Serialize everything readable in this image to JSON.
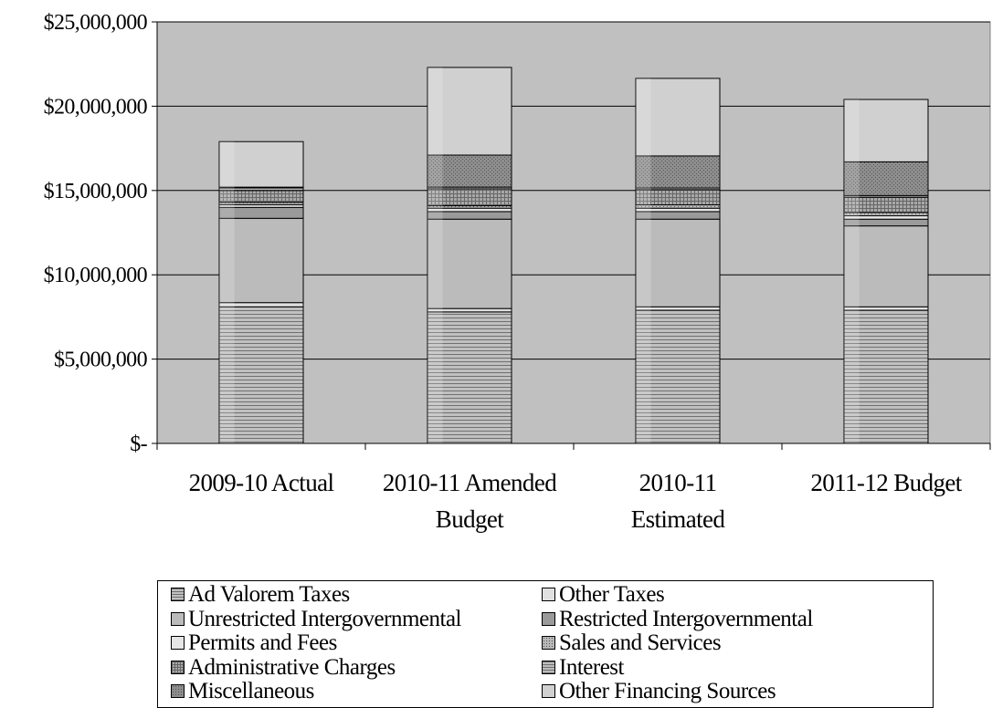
{
  "chart_data": {
    "type": "bar",
    "stacked": true,
    "categories": [
      "2009-10 Actual",
      "2010-11 Amended Budget",
      "2010-11 Estimated",
      "2011-12 Budget"
    ],
    "category_label_lines": [
      [
        "2009-10 Actual"
      ],
      [
        "2010-11 Amended",
        "Budget"
      ],
      [
        "2010-11",
        "Estimated"
      ],
      [
        "2011-12 Budget"
      ]
    ],
    "y_ticks": [
      "$-",
      "$5,000,000",
      "$10,000,000",
      "$15,000,000",
      "$20,000,000",
      "$25,000,000"
    ],
    "ylim": [
      0,
      25000000
    ],
    "grid": true,
    "legend_position": "bottom",
    "series": [
      {
        "name": "Ad Valorem Taxes",
        "values": [
          8100000,
          7800000,
          7900000,
          7900000
        ],
        "fill": "#c0c0c0",
        "pattern": "hlines"
      },
      {
        "name": "Other Taxes",
        "values": [
          250000,
          200000,
          200000,
          200000
        ],
        "fill": "#e0e0e0",
        "pattern": "none"
      },
      {
        "name": "Unrestricted Intergovernmental",
        "values": [
          5000000,
          5300000,
          5200000,
          4800000
        ],
        "fill": "#bbbbbb",
        "pattern": "none"
      },
      {
        "name": "Restricted Intergovernmental",
        "values": [
          650000,
          450000,
          450000,
          400000
        ],
        "fill": "#9a9a9a",
        "pattern": "none"
      },
      {
        "name": "Permits and Fees",
        "values": [
          150000,
          200000,
          200000,
          200000
        ],
        "fill": "#e6e6e6",
        "pattern": "none"
      },
      {
        "name": "Sales and Services",
        "values": [
          150000,
          150000,
          200000,
          200000
        ],
        "fill": "#b8b8b8",
        "pattern": "dots"
      },
      {
        "name": "Administrative Charges",
        "values": [
          700000,
          1000000,
          900000,
          900000
        ],
        "fill": "#a8a8a8",
        "pattern": "grid"
      },
      {
        "name": "Interest",
        "values": [
          150000,
          100000,
          100000,
          100000
        ],
        "fill": "#bcbcbc",
        "pattern": "hlines"
      },
      {
        "name": "Miscellaneous",
        "values": [
          50000,
          1900000,
          1900000,
          2000000
        ],
        "fill": "#8e8e8e",
        "pattern": "dots"
      },
      {
        "name": "Other Financing Sources",
        "values": [
          2700000,
          5200000,
          4600000,
          3700000
        ],
        "fill": "#d0d0d0",
        "pattern": "none"
      }
    ],
    "colors": {
      "plot_background": "#c0c0c0",
      "gridline": "#000000",
      "axis": "#000000"
    }
  }
}
